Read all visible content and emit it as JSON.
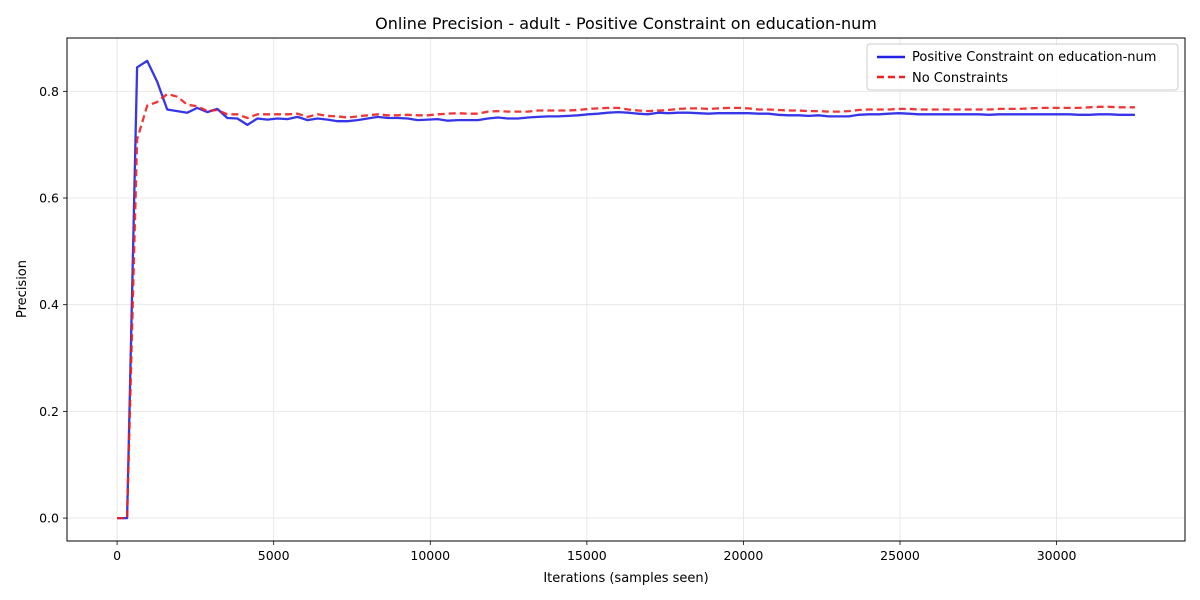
{
  "chart_data": {
    "type": "line",
    "title": "Online Precision - adult - Positive Constraint on education-num",
    "xlabel": "Iterations (samples seen)",
    "ylabel": "Precision",
    "xlim": [
      -1600,
      34100
    ],
    "ylim": [
      -0.043,
      0.9
    ],
    "xticks": [
      0,
      5000,
      10000,
      15000,
      20000,
      25000,
      30000
    ],
    "yticks": [
      0.0,
      0.2,
      0.4,
      0.6,
      0.8
    ],
    "xtick_labels": [
      "0",
      "5000",
      "10000",
      "15000",
      "20000",
      "25000",
      "30000"
    ],
    "ytick_labels": [
      "0.0",
      "0.2",
      "0.4",
      "0.6",
      "0.8"
    ],
    "grid": true,
    "legend_position": "upper-right",
    "series": [
      {
        "name": "Positive Constraint on education-num",
        "color": "#2020e6",
        "style": "solid",
        "x": [
          0,
          320,
          640,
          960,
          1280,
          1600,
          1920,
          2240,
          2560,
          2880,
          3200,
          3520,
          3840,
          4160,
          4480,
          4800,
          5120,
          5440,
          5760,
          6080,
          6400,
          6720,
          7040,
          7360,
          7680,
          8000,
          8320,
          8640,
          8960,
          9280,
          9600,
          9920,
          10240,
          10560,
          10880,
          11200,
          11520,
          11840,
          12160,
          12480,
          12800,
          13120,
          13440,
          13760,
          14080,
          14400,
          14720,
          15040,
          15360,
          15680,
          16000,
          16320,
          16640,
          16960,
          17280,
          17600,
          17920,
          18240,
          18560,
          18880,
          19200,
          19520,
          19840,
          20160,
          20480,
          20800,
          21120,
          21440,
          21760,
          22080,
          22400,
          22720,
          23040,
          23360,
          23680,
          24000,
          24320,
          24640,
          24960,
          25280,
          25600,
          25920,
          26240,
          26560,
          26880,
          27200,
          27520,
          27840,
          28160,
          28480,
          28800,
          29120,
          29440,
          29760,
          30080,
          30400,
          30720,
          31040,
          31360,
          31680,
          32000,
          32500
        ],
        "y": [
          0.0,
          0.0,
          0.845,
          0.857,
          0.818,
          0.766,
          0.763,
          0.76,
          0.769,
          0.761,
          0.767,
          0.75,
          0.749,
          0.737,
          0.749,
          0.747,
          0.749,
          0.748,
          0.752,
          0.746,
          0.749,
          0.747,
          0.744,
          0.744,
          0.746,
          0.749,
          0.752,
          0.75,
          0.75,
          0.749,
          0.746,
          0.747,
          0.748,
          0.745,
          0.746,
          0.746,
          0.746,
          0.749,
          0.751,
          0.749,
          0.749,
          0.751,
          0.752,
          0.753,
          0.753,
          0.754,
          0.755,
          0.757,
          0.758,
          0.76,
          0.761,
          0.76,
          0.758,
          0.757,
          0.76,
          0.759,
          0.76,
          0.76,
          0.759,
          0.758,
          0.759,
          0.759,
          0.759,
          0.759,
          0.758,
          0.758,
          0.756,
          0.755,
          0.755,
          0.754,
          0.755,
          0.753,
          0.753,
          0.753,
          0.756,
          0.757,
          0.757,
          0.758,
          0.759,
          0.758,
          0.757,
          0.757,
          0.757,
          0.757,
          0.757,
          0.757,
          0.757,
          0.756,
          0.757,
          0.757,
          0.757,
          0.757,
          0.757,
          0.757,
          0.757,
          0.757,
          0.756,
          0.756,
          0.757,
          0.757,
          0.756,
          0.756
        ]
      },
      {
        "name": "No Constraints",
        "color": "#ee2020",
        "style": "dashed",
        "x": [
          0,
          320,
          640,
          960,
          1280,
          1600,
          1920,
          2240,
          2560,
          2880,
          3200,
          3520,
          3840,
          4160,
          4480,
          4800,
          5120,
          5440,
          5760,
          6080,
          6400,
          6720,
          7040,
          7360,
          7680,
          8000,
          8320,
          8640,
          8960,
          9280,
          9600,
          9920,
          10240,
          10560,
          10880,
          11200,
          11520,
          11840,
          12160,
          12480,
          12800,
          13120,
          13440,
          13760,
          14080,
          14400,
          14720,
          15040,
          15360,
          15680,
          16000,
          16320,
          16640,
          16960,
          17280,
          17600,
          17920,
          18240,
          18560,
          18880,
          19200,
          19520,
          19840,
          20160,
          20480,
          20800,
          21120,
          21440,
          21760,
          22080,
          22400,
          22720,
          23040,
          23360,
          23680,
          24000,
          24320,
          24640,
          24960,
          25280,
          25600,
          25920,
          26240,
          26560,
          26880,
          27200,
          27520,
          27840,
          28160,
          28480,
          28800,
          29120,
          29440,
          29760,
          30080,
          30400,
          30720,
          31040,
          31360,
          31680,
          32000,
          32500
        ],
        "y": [
          0.0,
          0.0,
          0.71,
          0.773,
          0.78,
          0.795,
          0.79,
          0.775,
          0.772,
          0.763,
          0.765,
          0.757,
          0.757,
          0.75,
          0.757,
          0.757,
          0.757,
          0.757,
          0.758,
          0.752,
          0.757,
          0.754,
          0.753,
          0.751,
          0.753,
          0.755,
          0.757,
          0.755,
          0.755,
          0.756,
          0.755,
          0.755,
          0.757,
          0.758,
          0.759,
          0.758,
          0.758,
          0.762,
          0.763,
          0.762,
          0.762,
          0.762,
          0.764,
          0.764,
          0.764,
          0.764,
          0.765,
          0.767,
          0.768,
          0.769,
          0.769,
          0.766,
          0.764,
          0.763,
          0.764,
          0.765,
          0.767,
          0.768,
          0.768,
          0.767,
          0.768,
          0.769,
          0.769,
          0.768,
          0.766,
          0.766,
          0.765,
          0.764,
          0.764,
          0.763,
          0.763,
          0.762,
          0.762,
          0.763,
          0.765,
          0.766,
          0.766,
          0.766,
          0.767,
          0.767,
          0.766,
          0.766,
          0.766,
          0.766,
          0.766,
          0.766,
          0.766,
          0.766,
          0.767,
          0.767,
          0.767,
          0.768,
          0.769,
          0.769,
          0.769,
          0.769,
          0.769,
          0.77,
          0.771,
          0.771,
          0.77,
          0.77
        ]
      }
    ]
  }
}
